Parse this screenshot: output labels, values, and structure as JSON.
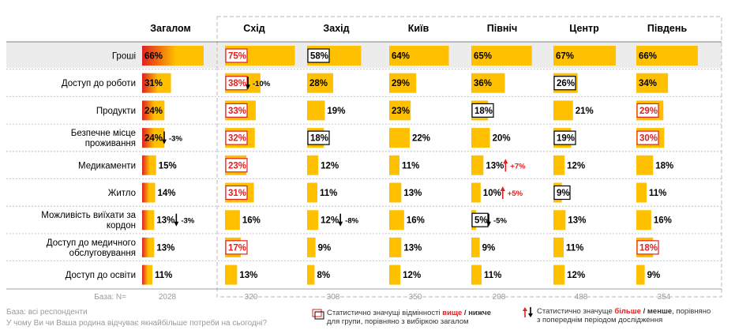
{
  "chart_data": {
    "type": "table",
    "columns": [
      "Загалом",
      "Схід",
      "Захід",
      "Київ",
      "Північ",
      "Центр",
      "Південь"
    ],
    "rows": [
      {
        "label": [
          "Гроші"
        ],
        "values": [
          66,
          75,
          58,
          64,
          65,
          67,
          66
        ],
        "marks": [
          "",
          "higher",
          "lower",
          "",
          "",
          "",
          ""
        ],
        "changes": [
          "",
          "",
          "",
          "",
          "",
          "",
          ""
        ]
      },
      {
        "label": [
          "Доступ до роботи"
        ],
        "values": [
          31,
          38,
          28,
          29,
          36,
          26,
          34
        ],
        "marks": [
          "",
          "higher",
          "",
          "",
          "",
          "lower",
          ""
        ],
        "changes": [
          "",
          "-10%",
          "",
          "",
          "",
          "",
          ""
        ]
      },
      {
        "label": [
          "Продукти"
        ],
        "values": [
          24,
          33,
          19,
          23,
          18,
          21,
          29
        ],
        "marks": [
          "",
          "higher",
          "",
          "",
          "lower",
          "",
          "higher"
        ],
        "changes": [
          "",
          "",
          "",
          "",
          "",
          "",
          ""
        ]
      },
      {
        "label": [
          "Безпечне місце",
          "проживання"
        ],
        "values": [
          24,
          32,
          18,
          22,
          20,
          19,
          30
        ],
        "marks": [
          "",
          "higher",
          "lower",
          "",
          "",
          "lower",
          "higher"
        ],
        "changes": [
          "-3%",
          "",
          "",
          "",
          "",
          "",
          ""
        ]
      },
      {
        "label": [
          "Медикаменти"
        ],
        "values": [
          15,
          23,
          12,
          11,
          13,
          12,
          18
        ],
        "marks": [
          "",
          "higher",
          "",
          "",
          "",
          "",
          ""
        ],
        "changes": [
          "",
          "",
          "",
          "",
          "+7%",
          "",
          ""
        ]
      },
      {
        "label": [
          "Житло"
        ],
        "values": [
          14,
          31,
          11,
          13,
          10,
          9,
          11
        ],
        "marks": [
          "",
          "higher",
          "",
          "",
          "",
          "lower",
          ""
        ],
        "changes": [
          "",
          "",
          "",
          "",
          "+5%",
          "",
          ""
        ]
      },
      {
        "label": [
          "Можливість виїхати за",
          "кордон"
        ],
        "values": [
          13,
          16,
          12,
          16,
          5,
          13,
          16
        ],
        "marks": [
          "",
          "",
          "",
          "",
          "lower",
          "",
          ""
        ],
        "changes": [
          "-3%",
          "",
          "-8%",
          "",
          "-5%",
          "",
          ""
        ]
      },
      {
        "label": [
          "Доступ до медичного",
          "обслуговування"
        ],
        "values": [
          13,
          17,
          9,
          13,
          9,
          11,
          18
        ],
        "marks": [
          "",
          "higher",
          "",
          "",
          "",
          "",
          "higher"
        ],
        "changes": [
          "",
          "",
          "",
          "",
          "",
          "",
          ""
        ]
      },
      {
        "label": [
          "Доступ до освіти"
        ],
        "values": [
          11,
          13,
          8,
          12,
          11,
          12,
          9
        ],
        "marks": [
          "",
          "",
          "",
          "",
          "",
          "",
          ""
        ],
        "changes": [
          "",
          "",
          "",
          "",
          "",
          "",
          ""
        ]
      }
    ],
    "base_label": "База: N=",
    "bases": [
      "2028",
      "320",
      "308",
      "350",
      "208",
      "488",
      "354"
    ],
    "colors": {
      "bar": "#FFC000",
      "gradient_start": "#E02020",
      "highlight_row": "#ECECEC",
      "higher": "#E02020",
      "lower": "#000000",
      "dashed_border": "#BBBBBB"
    }
  },
  "footnotes": {
    "base": "База: всі респонденти",
    "question": "У чому Ви чи Ваша родина відчуває якнайбільше потреби на сьогодні?"
  },
  "legend": {
    "box": {
      "l1_a": "Статистично значущі відмінності ",
      "l1_b": "вище",
      "l1_c": " / ",
      "l1_d": "нижче",
      "l2": "для групи, порівняно з вибіркою загалом"
    },
    "arrow": {
      "l1_a": "Статистично значуще ",
      "l1_b": "більше",
      "l1_c": " / ",
      "l1_d": "менше",
      "l1_e": ", порівняно",
      "l2": "з попереднім періодом дослідження"
    }
  }
}
